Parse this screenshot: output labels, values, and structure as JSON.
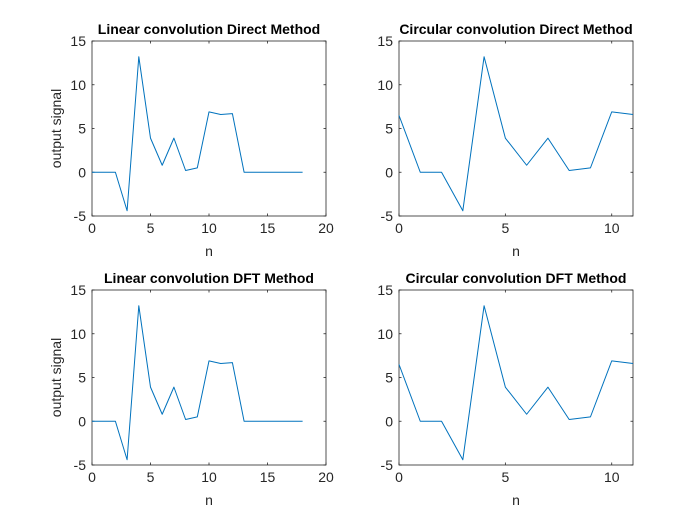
{
  "figure": {
    "background": "#ffffff",
    "line_color": "#0072bd",
    "axis_color": "#262626"
  },
  "chart_data": [
    {
      "type": "line",
      "title": "Linear convolution Direct Method",
      "xlabel": "n",
      "ylabel": "output signal",
      "xlim": [
        0,
        20
      ],
      "ylim": [
        -5,
        15
      ],
      "xticks": [
        0,
        5,
        10,
        15,
        20
      ],
      "yticks": [
        -5,
        0,
        5,
        10,
        15
      ],
      "grid": false,
      "series": [
        {
          "x": [
            0,
            1,
            2,
            3,
            4,
            5,
            6,
            7,
            8,
            9,
            10,
            11,
            12,
            13,
            14,
            15,
            16,
            17,
            18
          ],
          "values": [
            0,
            0,
            0,
            -4.4,
            13.2,
            3.9,
            0.8,
            3.9,
            0.2,
            0.5,
            6.9,
            6.6,
            6.7,
            0,
            0,
            0,
            0,
            0,
            0
          ]
        }
      ]
    },
    {
      "type": "line",
      "title": "Circular convolution Direct Method",
      "xlabel": "n",
      "ylabel": "",
      "xlim": [
        0,
        11
      ],
      "ylim": [
        -5,
        15
      ],
      "xticks": [
        0,
        5,
        10
      ],
      "yticks": [
        -5,
        0,
        5,
        10,
        15
      ],
      "grid": false,
      "series": [
        {
          "x": [
            0,
            1,
            2,
            3,
            4,
            5,
            6,
            7,
            8,
            9,
            10,
            11
          ],
          "values": [
            6.5,
            0,
            0,
            -4.4,
            13.2,
            3.9,
            0.8,
            3.9,
            0.2,
            0.5,
            6.9,
            6.6
          ]
        }
      ]
    },
    {
      "type": "line",
      "title": "Linear convolution DFT Method",
      "xlabel": "n",
      "ylabel": "output signal",
      "xlim": [
        0,
        20
      ],
      "ylim": [
        -5,
        15
      ],
      "xticks": [
        0,
        5,
        10,
        15,
        20
      ],
      "yticks": [
        -5,
        0,
        5,
        10,
        15
      ],
      "grid": false,
      "series": [
        {
          "x": [
            0,
            1,
            2,
            3,
            4,
            5,
            6,
            7,
            8,
            9,
            10,
            11,
            12,
            13,
            14,
            15,
            16,
            17,
            18
          ],
          "values": [
            0,
            0,
            0,
            -4.4,
            13.2,
            3.9,
            0.8,
            3.9,
            0.2,
            0.5,
            6.9,
            6.6,
            6.7,
            0,
            0,
            0,
            0,
            0,
            0
          ]
        }
      ]
    },
    {
      "type": "line",
      "title": "Circular convolution DFT Method",
      "xlabel": "n",
      "ylabel": "",
      "xlim": [
        0,
        11
      ],
      "ylim": [
        -5,
        15
      ],
      "xticks": [
        0,
        5,
        10
      ],
      "yticks": [
        -5,
        0,
        5,
        10,
        15
      ],
      "grid": false,
      "series": [
        {
          "x": [
            0,
            1,
            2,
            3,
            4,
            5,
            6,
            7,
            8,
            9,
            10,
            11
          ],
          "values": [
            6.5,
            0,
            0,
            -4.4,
            13.2,
            3.9,
            0.8,
            3.9,
            0.2,
            0.5,
            6.9,
            6.6
          ]
        }
      ]
    }
  ]
}
